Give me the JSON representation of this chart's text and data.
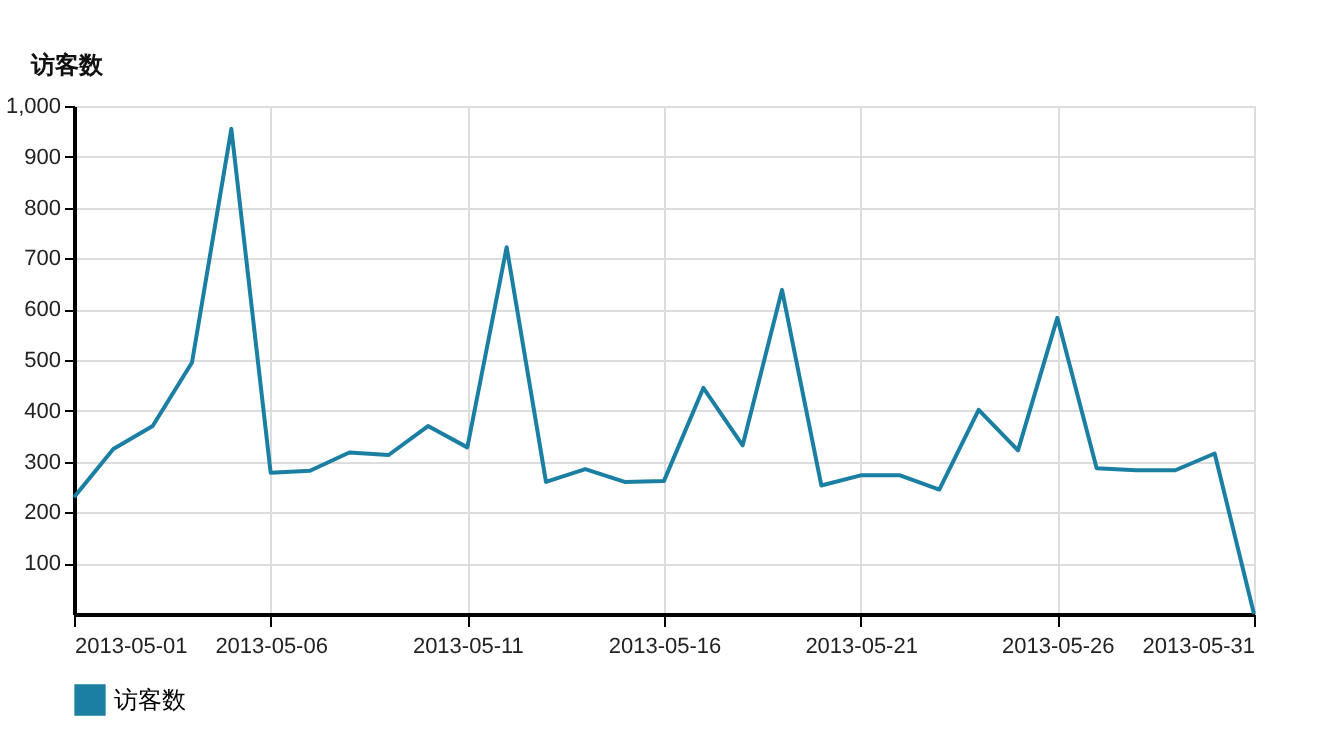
{
  "chart_data": {
    "type": "line",
    "ylabel": "访客数",
    "x": [
      "2013-05-01",
      "2013-05-02",
      "2013-05-03",
      "2013-05-04",
      "2013-05-05",
      "2013-05-06",
      "2013-05-07",
      "2013-05-08",
      "2013-05-09",
      "2013-05-10",
      "2013-05-11",
      "2013-05-12",
      "2013-05-13",
      "2013-05-14",
      "2013-05-15",
      "2013-05-16",
      "2013-05-17",
      "2013-05-18",
      "2013-05-19",
      "2013-05-20",
      "2013-05-21",
      "2013-05-22",
      "2013-05-23",
      "2013-05-24",
      "2013-05-25",
      "2013-05-26",
      "2013-05-27",
      "2013-05-28",
      "2013-05-29",
      "2013-05-30",
      "2013-05-31"
    ],
    "series": [
      {
        "name": "访客数",
        "color": "#1b7fa3",
        "values": [
          230,
          325,
          370,
          495,
          955,
          278,
          282,
          318,
          313,
          370,
          328,
          722,
          260,
          285,
          260,
          262,
          445,
          332,
          638,
          253,
          273,
          273,
          245,
          402,
          322,
          583,
          287,
          283,
          283,
          316,
          0
        ]
      }
    ],
    "xlim": [
      "2013-05-01",
      "2013-05-31"
    ],
    "xticks": [
      "2013-05-01",
      "2013-05-06",
      "2013-05-11",
      "2013-05-16",
      "2013-05-21",
      "2013-05-26",
      "2013-05-31"
    ],
    "ylim": [
      0,
      1000
    ],
    "yticks": [
      100,
      200,
      300,
      400,
      500,
      600,
      700,
      800,
      900,
      {
        "value": 1000,
        "label": "1,000"
      }
    ],
    "grid": true,
    "legend": "bottom left",
    "marker": "none",
    "line_style": "solid"
  }
}
